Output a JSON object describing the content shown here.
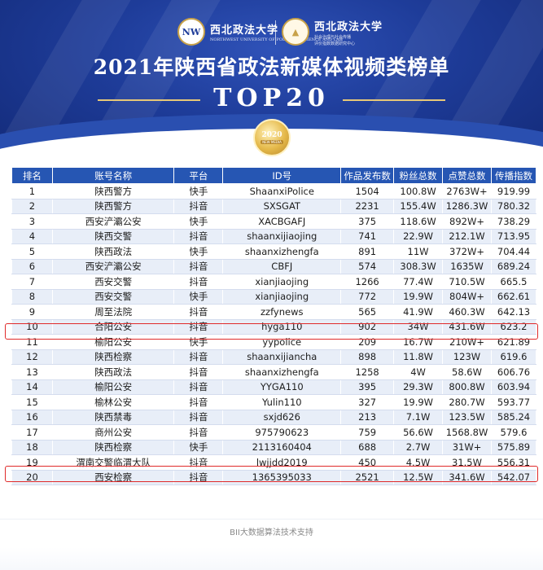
{
  "header": {
    "logo_left": {
      "name": "西北政法大学",
      "subtitle": "NORTHWEST UNIVERSITY OF POLITICAL SCIENCE AND LAW"
    },
    "logo_right": {
      "name": "西北政法大学",
      "subtitle_1": "社会治理与社会传播",
      "subtitle_2": "评价指数数据研究中心"
    },
    "main_title": "2021年陕西省政法新媒体视频类榜单",
    "sub_title": "TOP20",
    "badge_year": "2020",
    "badge_text": "NEW MEDIA"
  },
  "table": {
    "columns": [
      "排名",
      "账号名称",
      "平台",
      "ID号",
      "作品发布数",
      "粉丝总数",
      "点赞总数",
      "传播指数"
    ],
    "rows": [
      [
        "1",
        "陕西警方",
        "快手",
        "ShaanxiPolice",
        "1504",
        "100.8W",
        "2763W+",
        "919.99"
      ],
      [
        "2",
        "陕西警方",
        "抖音",
        "SXSGAT",
        "2231",
        "155.4W",
        "1286.3W",
        "780.32"
      ],
      [
        "3",
        "西安浐灞公安",
        "快手",
        "XACBGAFJ",
        "375",
        "118.6W",
        "892W+",
        "738.29"
      ],
      [
        "4",
        "陕西交警",
        "抖音",
        "shaanxijiaojing",
        "741",
        "22.9W",
        "212.1W",
        "713.95"
      ],
      [
        "5",
        "陕西政法",
        "快手",
        "shaanxizhengfa",
        "891",
        "11W",
        "372W+",
        "704.44"
      ],
      [
        "6",
        "西安浐灞公安",
        "抖音",
        "CBFJ",
        "574",
        "308.3W",
        "1635W",
        "689.24"
      ],
      [
        "7",
        "西安交警",
        "抖音",
        "xianjiaojing",
        "1266",
        "77.4W",
        "710.5W",
        "665.5"
      ],
      [
        "8",
        "西安交警",
        "快手",
        "xianjiaojing",
        "772",
        "19.9W",
        "804W+",
        "662.61"
      ],
      [
        "9",
        "周至法院",
        "抖音",
        "zzfynews",
        "565",
        "41.9W",
        "460.3W",
        "642.13"
      ],
      [
        "10",
        "合阳公安",
        "抖音",
        "hyga110",
        "902",
        "34W",
        "431.6W",
        "623.2"
      ],
      [
        "11",
        "榆阳公安",
        "快手",
        "yypolice",
        "209",
        "16.7W",
        "210W+",
        "621.89"
      ],
      [
        "12",
        "陕西检察",
        "抖音",
        "shaanxijiancha",
        "898",
        "11.8W",
        "123W",
        "619.6"
      ],
      [
        "13",
        "陕西政法",
        "抖音",
        "shaanxizhengfa",
        "1258",
        "4W",
        "58.6W",
        "606.76"
      ],
      [
        "14",
        "榆阳公安",
        "抖音",
        "YYGA110",
        "395",
        "29.3W",
        "800.8W",
        "603.94"
      ],
      [
        "15",
        "榆林公安",
        "抖音",
        "Yulin110",
        "327",
        "19.9W",
        "280.7W",
        "593.77"
      ],
      [
        "16",
        "陕西禁毒",
        "抖音",
        "sxjd626",
        "213",
        "7.1W",
        "123.5W",
        "585.24"
      ],
      [
        "17",
        "商州公安",
        "抖音",
        "975790623",
        "759",
        "56.6W",
        "1568.8W",
        "579.6"
      ],
      [
        "18",
        "陕西检察",
        "快手",
        "2113160404",
        "688",
        "2.7W",
        "31W+",
        "575.89"
      ],
      [
        "19",
        "渭南交警临渭大队",
        "抖音",
        "lwjjdd2019",
        "450",
        "4.5W",
        "31.5W",
        "556.31"
      ],
      [
        "20",
        "西安检察",
        "抖音",
        "1365395033",
        "2521",
        "12.5W",
        "341.6W",
        "542.07"
      ]
    ]
  },
  "footer": {
    "text": "BII大数据算法技术支持"
  },
  "colors": {
    "header_bg": "#1e3c99",
    "table_header": "#2656b3",
    "row_alt": "#e8eef8",
    "highlight": "#e02a2a",
    "gold": "#e6c778"
  }
}
